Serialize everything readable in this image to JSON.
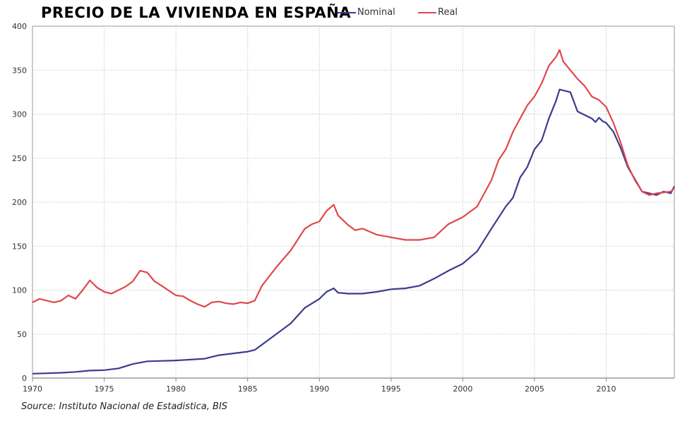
{
  "chart_data": {
    "type": "line",
    "title": "PRECIO DE LA VIVIENDA EN ESPAÑA",
    "source": "Source: Instituto Nacional de Estadistica, BIS",
    "xlim": [
      1970,
      2014.75
    ],
    "ylim": [
      0,
      400
    ],
    "xticks": [
      1970,
      1975,
      1980,
      1985,
      1990,
      1995,
      2000,
      2005,
      2010
    ],
    "yticks": [
      0,
      50,
      100,
      150,
      200,
      250,
      300,
      350,
      400
    ],
    "grid": true,
    "legend_position": "top",
    "series": [
      {
        "name": "Nominal",
        "color": "#3b3b8f",
        "x": [
          1970,
          1971,
          1972,
          1973,
          1974,
          1975,
          1976,
          1977,
          1978,
          1979,
          1980,
          1981,
          1982,
          1983,
          1984,
          1985,
          1985.5,
          1986,
          1987,
          1988,
          1989,
          1990,
          1990.5,
          1991,
          1991.3,
          1992,
          1993,
          1994,
          1995,
          1996,
          1997,
          1998,
          1999,
          2000,
          2001,
          2002,
          2003,
          2003.5,
          2004,
          2004.5,
          2005,
          2005.5,
          2006,
          2006.5,
          2006.75,
          2007,
          2007.5,
          2008,
          2009,
          2009.25,
          2009.5,
          2009.75,
          2010,
          2010.5,
          2011,
          2011.5,
          2012,
          2012.5,
          2013,
          2013.5,
          2014,
          2014.5,
          2014.75
        ],
        "y": [
          5,
          5.5,
          6,
          7,
          8.5,
          9,
          11,
          16,
          19,
          19.5,
          20,
          21,
          22,
          26,
          28,
          30,
          32,
          38,
          50,
          62,
          80,
          90,
          98,
          102,
          97,
          96,
          96,
          98,
          101,
          102,
          105,
          113,
          122,
          130,
          144,
          170,
          195,
          205,
          228,
          240,
          260,
          270,
          295,
          315,
          328,
          327,
          325,
          303,
          295,
          291,
          296,
          292,
          290,
          280,
          262,
          240,
          226,
          212,
          210,
          208,
          212,
          210,
          218
        ]
      },
      {
        "name": "Real",
        "color": "#e0474c",
        "x": [
          1970,
          1970.5,
          1971,
          1971.5,
          1972,
          1972.5,
          1973,
          1973.5,
          1974,
          1974.5,
          1975,
          1975.5,
          1976,
          1976.5,
          1977,
          1977.5,
          1978,
          1978.5,
          1979,
          1980,
          1980.5,
          1981,
          1981.5,
          1982,
          1982.5,
          1983,
          1983.5,
          1984,
          1984.5,
          1985,
          1985.5,
          1986,
          1987,
          1988,
          1989,
          1989.5,
          1990,
          1990.5,
          1991,
          1991.3,
          1992,
          1992.5,
          1993,
          1994,
          1995,
          1996,
          1997,
          1998,
          1999,
          2000,
          2001,
          2002,
          2002.5,
          2003,
          2003.5,
          2004,
          2004.5,
          2005,
          2005.5,
          2006,
          2006.5,
          2006.75,
          2007,
          2007.5,
          2008,
          2008.5,
          2009,
          2009.5,
          2010,
          2010.5,
          2011,
          2011.5,
          2012,
          2012.5,
          2013,
          2013.5,
          2014,
          2014.5,
          2014.75
        ],
        "y": [
          86,
          90,
          88,
          86,
          88,
          94,
          90,
          100,
          111,
          103,
          98,
          96,
          100,
          104,
          110,
          122,
          120,
          110,
          105,
          94,
          93,
          88,
          84,
          81,
          86,
          87,
          85,
          84,
          86,
          85,
          88,
          105,
          126,
          145,
          170,
          175,
          178,
          190,
          197,
          185,
          174,
          168,
          170,
          163,
          160,
          157,
          157,
          160,
          175,
          183,
          195,
          225,
          248,
          260,
          280,
          295,
          310,
          320,
          335,
          355,
          365,
          373,
          360,
          350,
          340,
          332,
          320,
          316,
          308,
          290,
          268,
          242,
          225,
          212,
          208,
          210,
          211,
          212,
          216
        ]
      }
    ]
  }
}
